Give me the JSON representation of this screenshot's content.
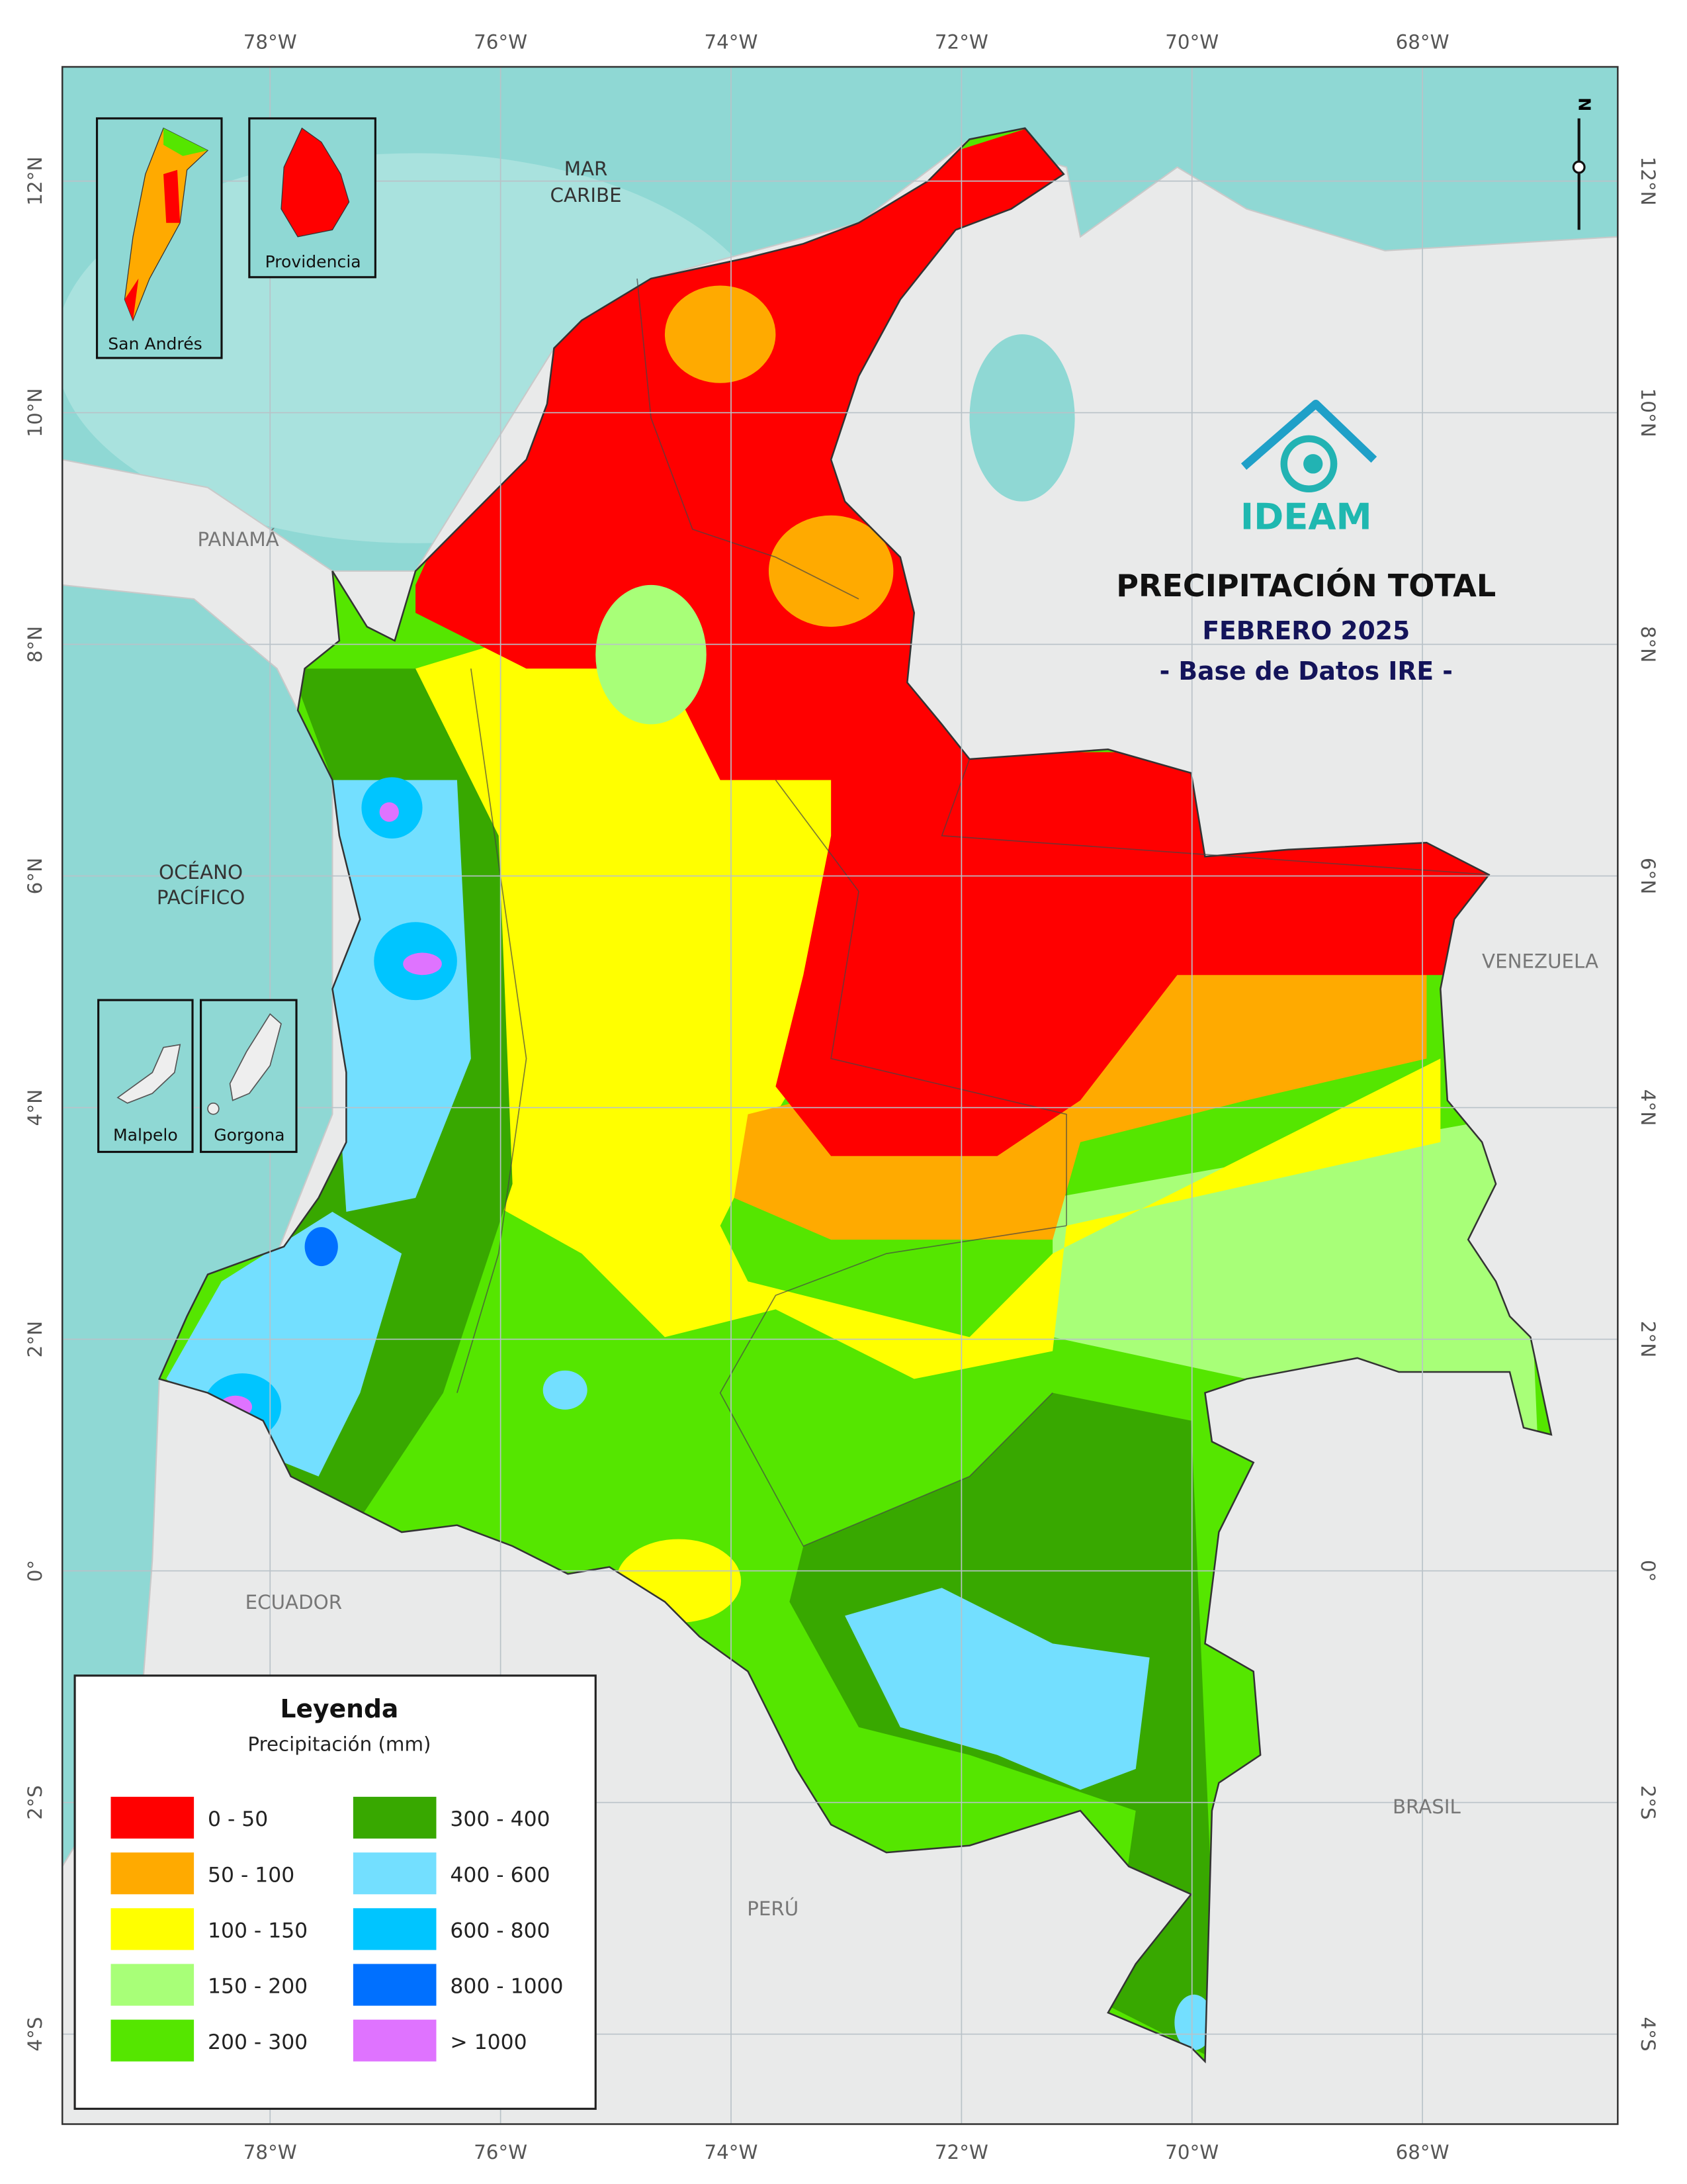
{
  "map": {
    "title": "PRECIPITACIÓN TOTAL",
    "subtitle": "FEBRERO 2025",
    "source": "- Base de Datos IRE -",
    "logo": "IDEAM",
    "north": "N",
    "longitudes": [
      "78°W",
      "76°W",
      "74°W",
      "72°W",
      "70°W",
      "68°W"
    ],
    "latitudes": [
      "12°N",
      "10°N",
      "8°N",
      "6°N",
      "4°N",
      "2°N",
      "0°",
      "2°S",
      "4°S"
    ],
    "places": {
      "caribbean": [
        "MAR",
        "CARIBE"
      ],
      "pacific": [
        "OCÉANO",
        "PACÍFICO"
      ],
      "panama": "PANAMÁ",
      "venezuela": "VENEZUELA",
      "ecuador": "ECUADOR",
      "brasil": "BRASIL",
      "peru": "PERÚ"
    },
    "insets": [
      "San Andrés",
      "Providencia",
      "Malpelo",
      "Gorgona"
    ],
    "legend": {
      "title": "Leyenda",
      "subtitle": "Precipitación (mm)",
      "items": [
        {
          "label": "0 - 50",
          "color": "#ff0000"
        },
        {
          "label": "50 - 100",
          "color": "#ffaa00"
        },
        {
          "label": "100 - 150",
          "color": "#ffff00"
        },
        {
          "label": "150 - 200",
          "color": "#a8ff78"
        },
        {
          "label": "200 - 300",
          "color": "#55e600"
        },
        {
          "label": "300 - 400",
          "color": "#38a800"
        },
        {
          "label": "400 - 600",
          "color": "#73dfff"
        },
        {
          "label": "600 - 800",
          "color": "#00c5ff"
        },
        {
          "label": "800 - 1000",
          "color": "#0070ff"
        },
        {
          "label": "> 1000",
          "color": "#df73ff"
        }
      ]
    }
  }
}
